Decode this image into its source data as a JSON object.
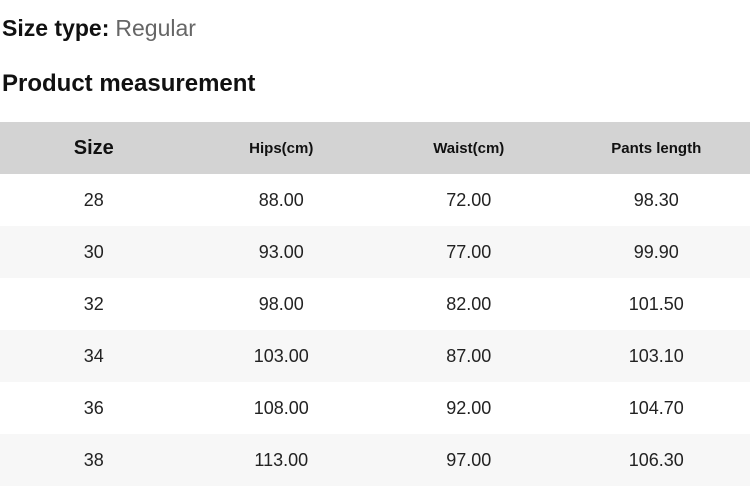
{
  "page": {
    "size_type_label": "Size type:",
    "size_type_value": "Regular",
    "section_title": "Product measurement"
  },
  "table": {
    "headers": [
      "Size",
      "Hips(cm)",
      "Waist(cm)",
      "Pants length"
    ],
    "rows": [
      {
        "size": "28",
        "hips": "88.00",
        "waist": "72.00",
        "pants_length": "98.30"
      },
      {
        "size": "30",
        "hips": "93.00",
        "waist": "77.00",
        "pants_length": "99.90"
      },
      {
        "size": "32",
        "hips": "98.00",
        "waist": "82.00",
        "pants_length": "101.50"
      },
      {
        "size": "34",
        "hips": "103.00",
        "waist": "87.00",
        "pants_length": "103.10"
      },
      {
        "size": "36",
        "hips": "108.00",
        "waist": "92.00",
        "pants_length": "104.70"
      },
      {
        "size": "38",
        "hips": "113.00",
        "waist": "97.00",
        "pants_length": "106.30"
      }
    ]
  },
  "colors": {
    "header_bg": "#d3d3d3",
    "row_alt_bg": "#f7f7f7",
    "title_text": "#111111",
    "muted_text": "#666666"
  }
}
